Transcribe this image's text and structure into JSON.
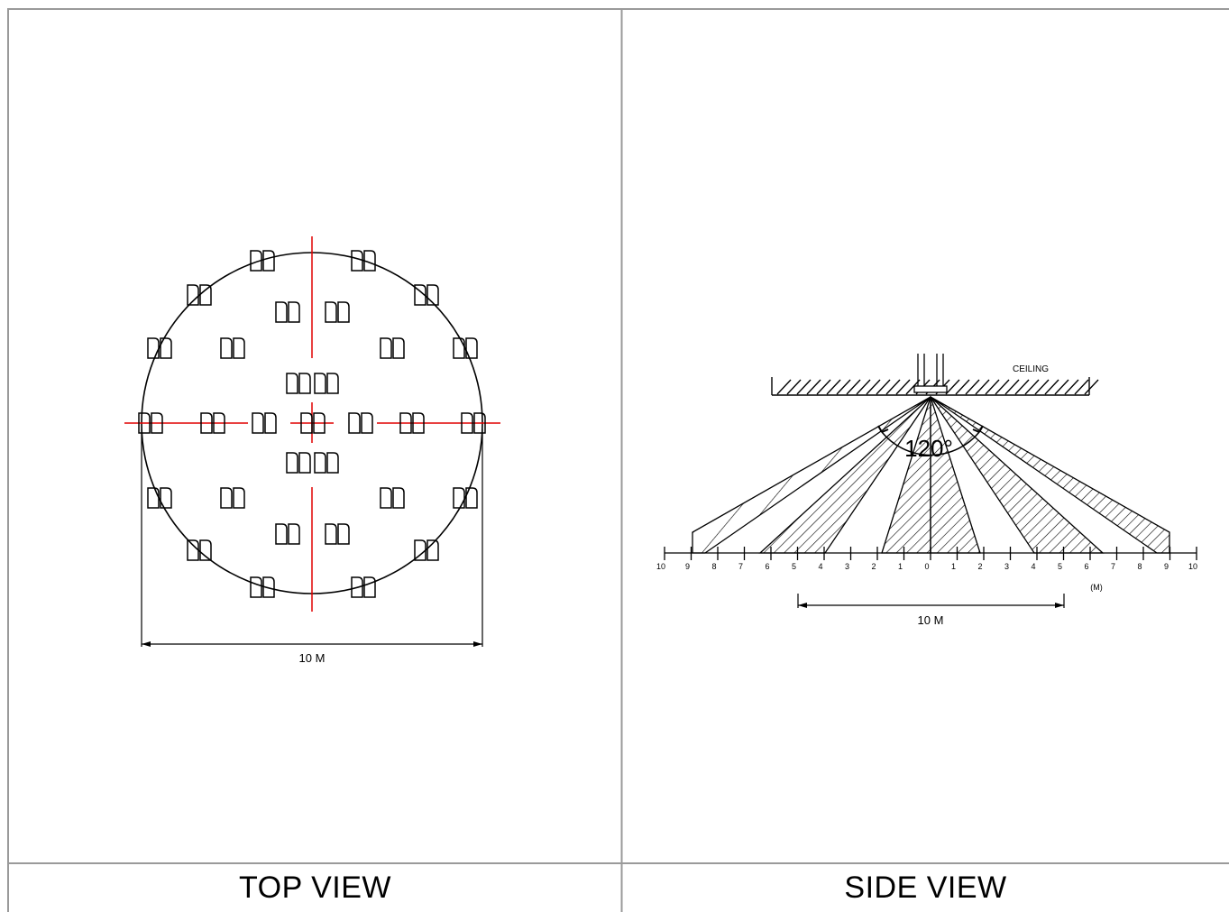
{
  "panels": {
    "top": {
      "caption": "TOP VIEW"
    },
    "side": {
      "caption": "SIDE VIEW"
    }
  },
  "top_view": {
    "dimension_label": "10 M",
    "zone_glyph": "ᗡᗡ"
  },
  "side_view": {
    "ceiling_label": "CEILING",
    "angle_label": "120°",
    "unit_label": "(M)",
    "dimension_label": "10 M",
    "scale_ticks": [
      "10",
      "9",
      "8",
      "7",
      "6",
      "5",
      "4",
      "3",
      "2",
      "1",
      "0",
      "1",
      "2",
      "3",
      "4",
      "5",
      "6",
      "7",
      "8",
      "9",
      "10"
    ]
  },
  "colors": {
    "frame": "#9a9a9a",
    "ink": "#000000",
    "crosshair": "#e00000"
  }
}
